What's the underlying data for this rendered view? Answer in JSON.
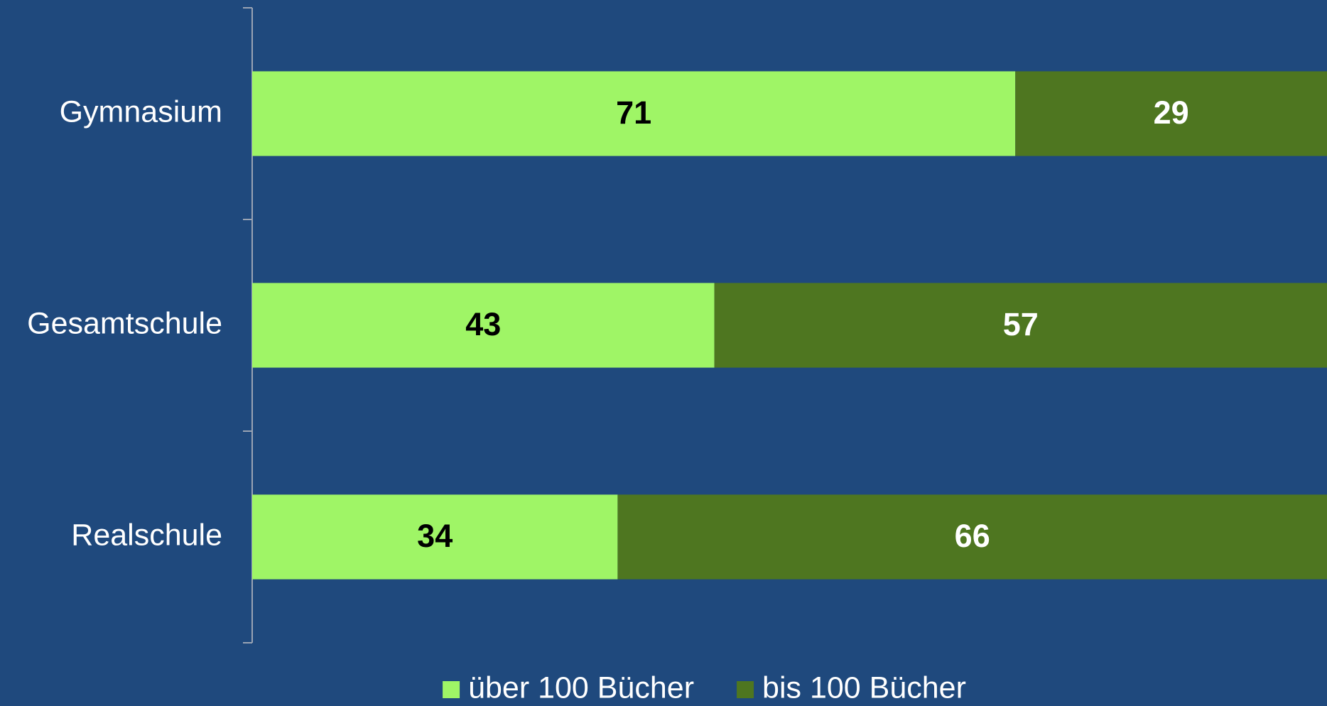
{
  "chart_data": {
    "type": "stacked_barh",
    "categories": [
      "Gymnasium",
      "Gesamtschule",
      "Realschule"
    ],
    "series": [
      {
        "name": "über 100 Bücher",
        "color": "#9ff566",
        "values": [
          71,
          43,
          34
        ]
      },
      {
        "name": "bis 100 Bücher",
        "color": "#4e7620",
        "values": [
          29,
          57,
          66
        ]
      }
    ],
    "xlim": [
      0,
      100
    ],
    "legend": "bottom"
  }
}
